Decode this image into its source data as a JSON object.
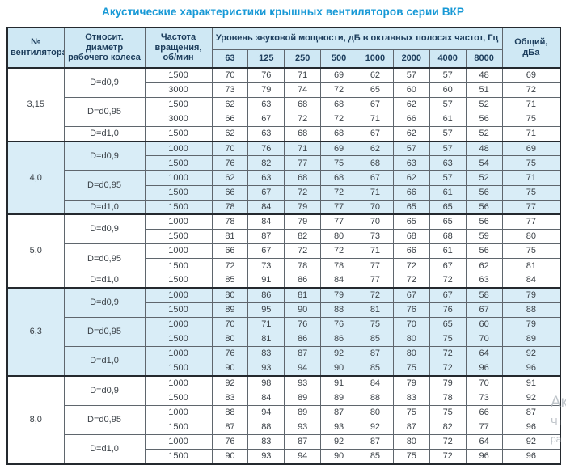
{
  "title": "Акустические характеристики крышных вентиляторов серии ВКР",
  "colors": {
    "accent": "#1899d6",
    "header_bg": "#cfe8f4",
    "shaded_row_bg": "#d9edf7",
    "thin_border": "#5f666d",
    "thick_border": "#24292e",
    "header_text": "#1c3d5c",
    "data_text": "#3c4248"
  },
  "watermark": {
    "lines": [
      "Ак",
      "Чт",
      "ра"
    ]
  },
  "table": {
    "headers": {
      "fan": "№ вентилятора",
      "diameter": "Относит. диаметр рабочего колеса",
      "rpm": "Частота вращения, об/мин",
      "spl_group": "Уровень звуковой мощности, дБ в октавных полосах частот, Гц",
      "frequencies": [
        "63",
        "125",
        "250",
        "500",
        "1000",
        "2000",
        "4000",
        "8000"
      ],
      "total": "Общий, дБа"
    },
    "groups": [
      {
        "fan": "3,15",
        "shaded": false,
        "subgroups": [
          {
            "diameter": "D=d0,9",
            "rows": [
              {
                "rpm": "1500",
                "values": [
                  70,
                  76,
                  71,
                  69,
                  62,
                  57,
                  57,
                  48
                ],
                "total": 69
              },
              {
                "rpm": "3000",
                "values": [
                  73,
                  79,
                  74,
                  72,
                  65,
                  60,
                  60,
                  51
                ],
                "total": 72
              }
            ]
          },
          {
            "diameter": "D=d0,95",
            "rows": [
              {
                "rpm": "1500",
                "values": [
                  62,
                  63,
                  68,
                  68,
                  67,
                  62,
                  57,
                  52
                ],
                "total": 71
              },
              {
                "rpm": "3000",
                "values": [
                  66,
                  67,
                  72,
                  72,
                  71,
                  66,
                  61,
                  56
                ],
                "total": 75
              }
            ]
          },
          {
            "diameter": "D=d1,0",
            "rows": [
              {
                "rpm": "1500",
                "values": [
                  62,
                  63,
                  68,
                  68,
                  67,
                  62,
                  57,
                  52
                ],
                "total": 71
              }
            ]
          }
        ]
      },
      {
        "fan": "4,0",
        "shaded": true,
        "subgroups": [
          {
            "diameter": "D=d0,9",
            "rows": [
              {
                "rpm": "1000",
                "values": [
                  70,
                  76,
                  71,
                  69,
                  62,
                  57,
                  57,
                  48
                ],
                "total": 69
              },
              {
                "rpm": "1500",
                "values": [
                  76,
                  82,
                  77,
                  75,
                  68,
                  63,
                  63,
                  54
                ],
                "total": 75
              }
            ]
          },
          {
            "diameter": "D=d0,95",
            "rows": [
              {
                "rpm": "1000",
                "values": [
                  62,
                  63,
                  68,
                  68,
                  67,
                  62,
                  57,
                  52
                ],
                "total": 71
              },
              {
                "rpm": "1500",
                "values": [
                  66,
                  67,
                  72,
                  72,
                  71,
                  66,
                  61,
                  56
                ],
                "total": 75
              }
            ]
          },
          {
            "diameter": "D=d1,0",
            "rows": [
              {
                "rpm": "1500",
                "values": [
                  78,
                  84,
                  79,
                  77,
                  70,
                  65,
                  65,
                  56
                ],
                "total": 77
              }
            ]
          }
        ]
      },
      {
        "fan": "5,0",
        "shaded": false,
        "subgroups": [
          {
            "diameter": "D=d0,9",
            "rows": [
              {
                "rpm": "1000",
                "values": [
                  78,
                  84,
                  79,
                  77,
                  70,
                  65,
                  65,
                  56
                ],
                "total": 77
              },
              {
                "rpm": "1500",
                "values": [
                  81,
                  87,
                  82,
                  80,
                  73,
                  68,
                  68,
                  59
                ],
                "total": 80
              }
            ]
          },
          {
            "diameter": "D=d0,95",
            "rows": [
              {
                "rpm": "1000",
                "values": [
                  66,
                  67,
                  72,
                  72,
                  71,
                  66,
                  61,
                  56
                ],
                "total": 75
              },
              {
                "rpm": "1500",
                "values": [
                  72,
                  73,
                  78,
                  78,
                  77,
                  72,
                  67,
                  62
                ],
                "total": 81
              }
            ]
          },
          {
            "diameter": "D=d1,0",
            "rows": [
              {
                "rpm": "1500",
                "values": [
                  85,
                  91,
                  86,
                  84,
                  77,
                  72,
                  72,
                  63
                ],
                "total": 84
              }
            ]
          }
        ]
      },
      {
        "fan": "6,3",
        "shaded": true,
        "subgroups": [
          {
            "diameter": "D=d0,9",
            "rows": [
              {
                "rpm": "1000",
                "values": [
                  80,
                  86,
                  81,
                  79,
                  72,
                  67,
                  67,
                  58
                ],
                "total": 79
              },
              {
                "rpm": "1500",
                "values": [
                  89,
                  95,
                  90,
                  88,
                  81,
                  76,
                  76,
                  67
                ],
                "total": 88
              }
            ]
          },
          {
            "diameter": "D=d0,95",
            "rows": [
              {
                "rpm": "1000",
                "values": [
                  70,
                  71,
                  76,
                  76,
                  75,
                  70,
                  65,
                  60
                ],
                "total": 79
              },
              {
                "rpm": "1500",
                "values": [
                  80,
                  81,
                  86,
                  86,
                  85,
                  80,
                  75,
                  70
                ],
                "total": 89
              }
            ]
          },
          {
            "diameter": "D=d1,0",
            "rows": [
              {
                "rpm": "1000",
                "values": [
                  76,
                  83,
                  87,
                  92,
                  87,
                  80,
                  72,
                  64
                ],
                "total": 92
              },
              {
                "rpm": "1500",
                "values": [
                  90,
                  93,
                  94,
                  90,
                  85,
                  75,
                  72,
                  96
                ],
                "total": 96
              }
            ]
          }
        ]
      },
      {
        "fan": "8,0",
        "shaded": false,
        "subgroups": [
          {
            "diameter": "D=d0,9",
            "rows": [
              {
                "rpm": "1000",
                "values": [
                  92,
                  98,
                  93,
                  91,
                  84,
                  79,
                  79,
                  70
                ],
                "total": 91
              },
              {
                "rpm": "1500",
                "values": [
                  83,
                  84,
                  89,
                  89,
                  88,
                  83,
                  78,
                  73
                ],
                "total": 92
              }
            ]
          },
          {
            "diameter": "D=d0,95",
            "rows": [
              {
                "rpm": "1000",
                "values": [
                  88,
                  94,
                  89,
                  87,
                  80,
                  75,
                  75,
                  66
                ],
                "total": 87
              },
              {
                "rpm": "1500",
                "values": [
                  87,
                  88,
                  93,
                  93,
                  92,
                  87,
                  82,
                  77
                ],
                "total": 96
              }
            ]
          },
          {
            "diameter": "D=d1,0",
            "rows": [
              {
                "rpm": "1000",
                "values": [
                  76,
                  83,
                  87,
                  92,
                  87,
                  80,
                  72,
                  64
                ],
                "total": 92
              },
              {
                "rpm": "1500",
                "values": [
                  90,
                  93,
                  94,
                  90,
                  85,
                  75,
                  72,
                  96
                ],
                "total": 96
              }
            ]
          }
        ]
      }
    ]
  }
}
